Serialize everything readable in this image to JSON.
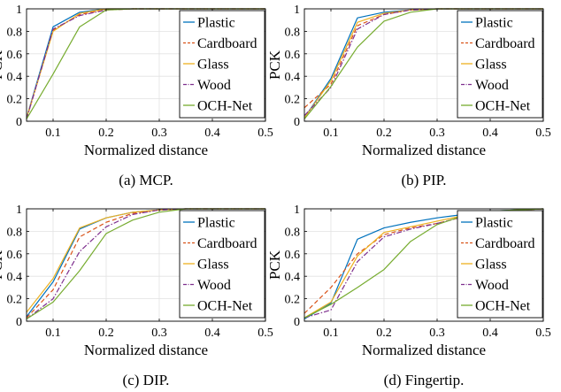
{
  "colors": {
    "Plastic": "#0072BD",
    "Cardboard": "#D95319",
    "Glass": "#EDB120",
    "Wood": "#7E2F8E",
    "OCH-Net": "#77AC30"
  },
  "chart_data": [
    {
      "type": "line",
      "caption": "(a) MCP.",
      "xlabel": "Normalized distance",
      "ylabel": "PCK",
      "xlim": [
        0.05,
        0.5
      ],
      "ylim": [
        0,
        1
      ],
      "xticks": [
        "0.1",
        "0.2",
        "0.3",
        "0.4",
        "0.5"
      ],
      "yticks": [
        "0",
        "0.2",
        "0.4",
        "0.6",
        "0.8",
        "1"
      ],
      "grid": true,
      "legend": "right",
      "x": [
        0.05,
        0.1,
        0.15,
        0.2,
        0.25,
        0.3,
        0.35,
        0.4,
        0.45,
        0.5
      ],
      "series": [
        {
          "name": "Plastic",
          "dash": "solid",
          "values": [
            0.03,
            0.84,
            0.97,
            1.0,
            1.0,
            1.0,
            1.0,
            1.0,
            1.0,
            1.0
          ]
        },
        {
          "name": "Cardboard",
          "dash": "dashed",
          "values": [
            0.02,
            0.81,
            0.95,
            0.99,
            1.0,
            1.0,
            1.0,
            1.0,
            1.0,
            1.0
          ]
        },
        {
          "name": "Glass",
          "dash": "solid",
          "values": [
            0.03,
            0.8,
            0.96,
            1.0,
            1.0,
            1.0,
            1.0,
            1.0,
            1.0,
            1.0
          ]
        },
        {
          "name": "Wood",
          "dash": "dashdot",
          "values": [
            0.02,
            0.82,
            0.94,
            0.99,
            1.0,
            1.0,
            1.0,
            1.0,
            1.0,
            1.0
          ]
        },
        {
          "name": "OCH-Net",
          "dash": "solid",
          "values": [
            0.02,
            0.42,
            0.84,
            0.99,
            1.0,
            1.0,
            1.0,
            1.0,
            1.0,
            1.0
          ]
        }
      ]
    },
    {
      "type": "line",
      "caption": "(b) PIP.",
      "xlabel": "Normalized distance",
      "ylabel": "PCK",
      "xlim": [
        0.05,
        0.5
      ],
      "ylim": [
        0,
        1
      ],
      "xticks": [
        "0.1",
        "0.2",
        "0.3",
        "0.4",
        "0.5"
      ],
      "yticks": [
        "0",
        "0.2",
        "0.4",
        "0.6",
        "0.8",
        "1"
      ],
      "grid": true,
      "legend": "right",
      "x": [
        0.05,
        0.1,
        0.15,
        0.2,
        0.25,
        0.3,
        0.35,
        0.4,
        0.45,
        0.5
      ],
      "series": [
        {
          "name": "Plastic",
          "dash": "solid",
          "values": [
            0.03,
            0.38,
            0.92,
            0.97,
            0.99,
            1.0,
            1.0,
            1.0,
            1.0,
            1.0
          ]
        },
        {
          "name": "Cardboard",
          "dash": "dashed",
          "values": [
            0.12,
            0.33,
            0.85,
            0.95,
            0.99,
            1.0,
            1.0,
            1.0,
            1.0,
            1.0
          ]
        },
        {
          "name": "Glass",
          "dash": "solid",
          "values": [
            0.03,
            0.36,
            0.88,
            0.96,
            0.99,
            1.0,
            1.0,
            1.0,
            1.0,
            1.0
          ]
        },
        {
          "name": "Wood",
          "dash": "dashdot",
          "values": [
            0.05,
            0.3,
            0.82,
            0.95,
            0.99,
            1.0,
            1.0,
            1.0,
            1.0,
            1.0
          ]
        },
        {
          "name": "OCH-Net",
          "dash": "solid",
          "values": [
            0.02,
            0.31,
            0.66,
            0.89,
            0.97,
            1.0,
            1.0,
            1.0,
            1.0,
            1.0
          ]
        }
      ]
    },
    {
      "type": "line",
      "caption": "(c) DIP.",
      "xlabel": "Normalized distance",
      "ylabel": "PCK",
      "xlim": [
        0.05,
        0.5
      ],
      "ylim": [
        0,
        1
      ],
      "xticks": [
        "0.1",
        "0.2",
        "0.3",
        "0.4",
        "0.5"
      ],
      "yticks": [
        "0",
        "0.2",
        "0.4",
        "0.6",
        "0.8",
        "1"
      ],
      "grid": true,
      "legend": "right",
      "x": [
        0.05,
        0.1,
        0.15,
        0.2,
        0.25,
        0.3,
        0.35,
        0.4,
        0.45,
        0.5
      ],
      "series": [
        {
          "name": "Plastic",
          "dash": "solid",
          "values": [
            0.04,
            0.35,
            0.82,
            0.92,
            0.97,
            0.99,
            1.0,
            1.0,
            1.0,
            1.0
          ]
        },
        {
          "name": "Cardboard",
          "dash": "dashed",
          "values": [
            0.03,
            0.28,
            0.75,
            0.88,
            0.96,
            0.99,
            1.0,
            1.0,
            1.0,
            1.0
          ]
        },
        {
          "name": "Glass",
          "dash": "solid",
          "values": [
            0.08,
            0.38,
            0.83,
            0.92,
            0.97,
            0.99,
            1.0,
            1.0,
            1.0,
            1.0
          ]
        },
        {
          "name": "Wood",
          "dash": "dashdot",
          "values": [
            0.02,
            0.2,
            0.62,
            0.84,
            0.95,
            0.99,
            1.0,
            1.0,
            1.0,
            1.0
          ]
        },
        {
          "name": "OCH-Net",
          "dash": "solid",
          "values": [
            0.02,
            0.17,
            0.45,
            0.78,
            0.9,
            0.97,
            1.0,
            1.0,
            1.0,
            1.0
          ]
        }
      ]
    },
    {
      "type": "line",
      "caption": "(d) Fingertip.",
      "xlabel": "Normalized distance",
      "ylabel": "PCK",
      "xlim": [
        0.05,
        0.5
      ],
      "ylim": [
        0,
        1
      ],
      "xticks": [
        "0.1",
        "0.2",
        "0.3",
        "0.4",
        "0.5"
      ],
      "yticks": [
        "0",
        "0.2",
        "0.4",
        "0.6",
        "0.8",
        "1"
      ],
      "grid": true,
      "legend": "right",
      "x": [
        0.05,
        0.1,
        0.15,
        0.2,
        0.25,
        0.3,
        0.35,
        0.4,
        0.45,
        0.5
      ],
      "series": [
        {
          "name": "Plastic",
          "dash": "solid",
          "values": [
            0.02,
            0.16,
            0.73,
            0.83,
            0.88,
            0.92,
            0.95,
            0.98,
            0.99,
            1.0
          ]
        },
        {
          "name": "Cardboard",
          "dash": "dashed",
          "values": [
            0.07,
            0.3,
            0.6,
            0.77,
            0.83,
            0.87,
            0.93,
            0.97,
            0.99,
            1.0
          ]
        },
        {
          "name": "Glass",
          "dash": "solid",
          "values": [
            0.03,
            0.17,
            0.58,
            0.79,
            0.84,
            0.89,
            0.94,
            0.97,
            0.99,
            1.0
          ]
        },
        {
          "name": "Wood",
          "dash": "dashdot",
          "values": [
            0.03,
            0.1,
            0.53,
            0.75,
            0.82,
            0.87,
            0.93,
            0.97,
            0.99,
            1.0
          ]
        },
        {
          "name": "OCH-Net",
          "dash": "solid",
          "values": [
            0.03,
            0.15,
            0.3,
            0.46,
            0.71,
            0.86,
            0.94,
            0.98,
            0.99,
            1.0
          ]
        }
      ]
    }
  ]
}
